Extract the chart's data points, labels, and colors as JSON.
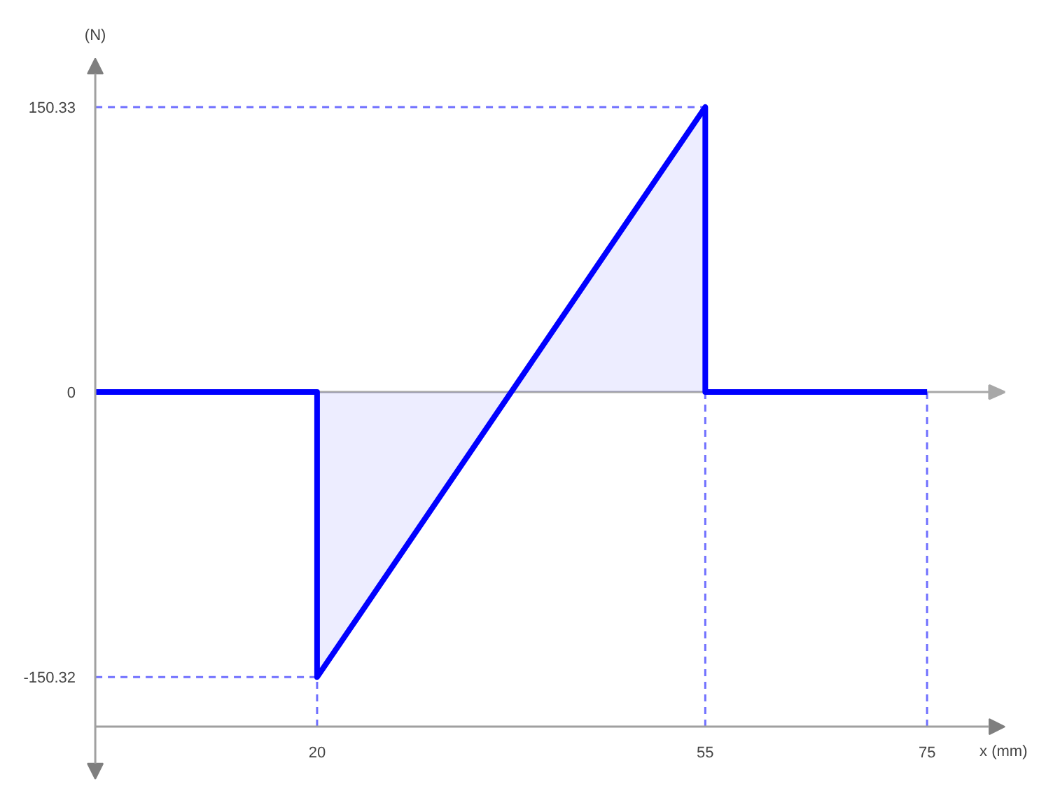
{
  "chart_data": {
    "type": "area",
    "xlabel": "x (mm)",
    "ylabel": "(N)",
    "x": [
      0,
      20,
      20,
      55,
      55,
      75
    ],
    "values": [
      0,
      0,
      -150.32,
      150.33,
      0,
      0
    ],
    "color": "#0000ff",
    "line_style": "solid",
    "xlim": [
      0,
      82
    ],
    "ylim": [
      -204,
      176
    ],
    "xticks": [
      20,
      55,
      75
    ],
    "yticks": [
      -150.32,
      0,
      150.33
    ],
    "ref_lines": [
      {
        "axis": "y",
        "value": 0,
        "color": "#a8a8a8",
        "line_style": "solid"
      },
      {
        "axis": "y",
        "value": 150.33,
        "color": "#7070ff",
        "line_style": "dashed"
      },
      {
        "axis": "y",
        "value": -150.32,
        "color": "#7070ff",
        "line_style": "dashed"
      },
      {
        "axis": "x",
        "value": 20,
        "color": "#7070ff",
        "line_style": "dashed"
      },
      {
        "axis": "x",
        "value": 55,
        "color": "#7070ff",
        "line_style": "dashed"
      },
      {
        "axis": "x",
        "value": 75,
        "color": "#7070ff",
        "line_style": "dashed"
      }
    ]
  }
}
